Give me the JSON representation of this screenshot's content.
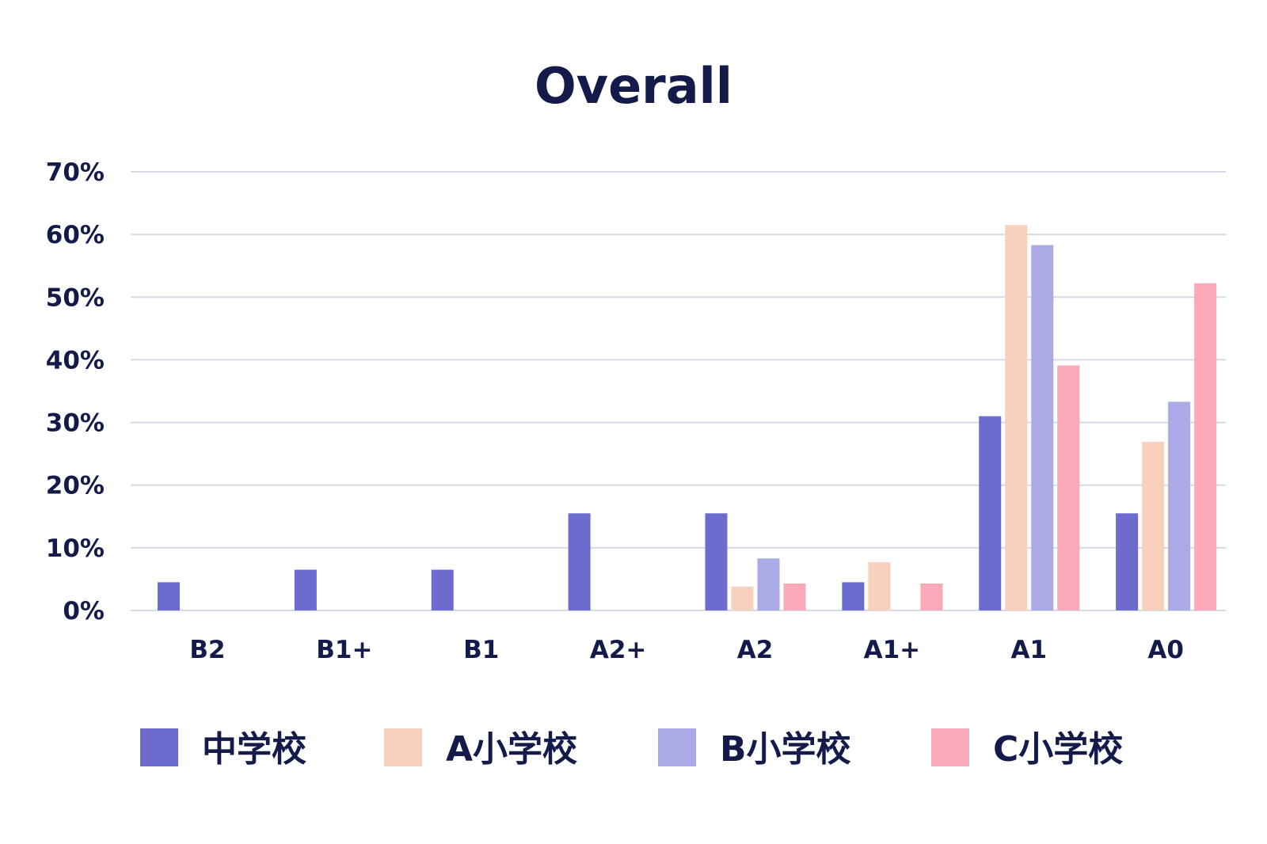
{
  "chart_data": {
    "type": "bar",
    "title": "Overall",
    "categories": [
      "B2",
      "B1+",
      "B1",
      "A2+",
      "A2",
      "A1+",
      "A1",
      "A0"
    ],
    "series": [
      {
        "name": "中学校",
        "color": "#6b6ccd",
        "values": [
          4.5,
          6.5,
          6.5,
          15.5,
          15.5,
          4.5,
          31,
          15.5
        ]
      },
      {
        "name": "A小学校",
        "color": "#f8d0be",
        "values": [
          0,
          0,
          0,
          0,
          3.8,
          7.7,
          61.5,
          26.9
        ]
      },
      {
        "name": "B小学校",
        "color": "#a9aae6",
        "values": [
          0,
          0,
          0,
          0,
          8.3,
          0,
          58.3,
          33.3
        ]
      },
      {
        "name": "C小学校",
        "color": "#f9a9b8",
        "values": [
          0,
          0,
          0,
          0,
          4.3,
          4.3,
          39.1,
          52.2
        ]
      }
    ],
    "y_ticks": [
      "0%",
      "10%",
      "20%",
      "30%",
      "40%",
      "50%",
      "60%",
      "70%"
    ],
    "ylim": [
      0,
      70
    ],
    "y_unit": "%",
    "grid": true,
    "legend_position": "bottom"
  }
}
